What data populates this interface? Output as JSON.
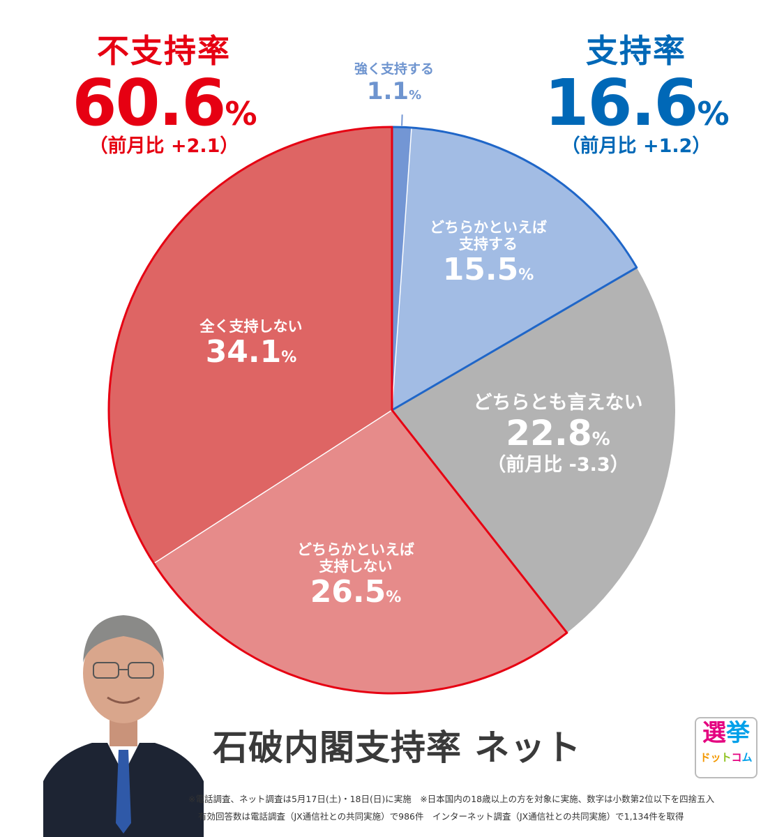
{
  "title": "石破内閣支持率 ネット",
  "summary": {
    "disapproval": {
      "label": "不支持率",
      "value": "60.6",
      "unit": "%",
      "change": "（前月比 +2.1）"
    },
    "approval": {
      "label": "支持率",
      "value": "16.6",
      "unit": "%",
      "change": "（前月比 +1.2）"
    }
  },
  "chart_data": {
    "type": "pie",
    "slices": [
      {
        "name": "強く支持する",
        "value": 1.1,
        "value_label": "1.1",
        "color": "#7396d4"
      },
      {
        "name_lines": [
          "どちらかといえば",
          "支持する"
        ],
        "value": 15.5,
        "value_label": "15.5",
        "color": "#a2bce4"
      },
      {
        "name": "どちらとも言えない",
        "value": 22.8,
        "value_label": "22.8",
        "change": "（前月比 -3.3）",
        "color": "#b3b3b3"
      },
      {
        "name_lines": [
          "どちらかといえば",
          "支持しない"
        ],
        "value": 26.5,
        "value_label": "26.5",
        "color": "#e68b8a"
      },
      {
        "name": "全く支持しない",
        "value": 34.1,
        "value_label": "34.1",
        "color": "#de6564"
      }
    ],
    "unit": "%",
    "group_outlines": {
      "approval": "#1f66c8",
      "disapproval": "#e60012"
    }
  },
  "footnotes": [
    "※電話調査、ネット調査は5月17日(土)・18日(日)に実施　※日本国内の18歳以上の方を対象に実施、数字は小数第2位以下を四捨五入",
    "有効回答数は電話調査（JX通信社との共同実施）で986件　インターネット調査（JX通信社との共同実施）で1,134件を取得"
  ],
  "logo": {
    "line1": "選挙",
    "line2": "ドットコム"
  }
}
